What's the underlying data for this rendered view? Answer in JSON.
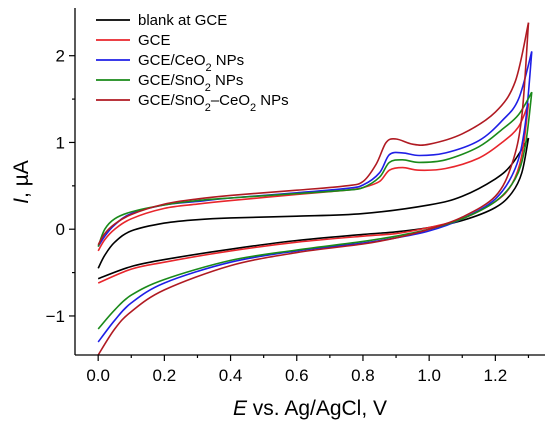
{
  "chart_data": {
    "type": "line",
    "xlabel": "E vs. Ag/AgCl, V",
    "xlabel_italic": "E",
    "xlabel_rest": " vs. Ag/AgCl, V",
    "ylabel": "I, µA",
    "ylabel_italic": "I",
    "ylabel_rest": ", µA",
    "xlim": [
      -0.07,
      1.35
    ],
    "ylim": [
      -1.45,
      2.55
    ],
    "xticks": [
      0.0,
      0.2,
      0.4,
      0.6,
      0.8,
      1.0,
      1.2
    ],
    "xtick_labels": [
      "0.0",
      "0.2",
      "0.4",
      "0.6",
      "0.8",
      "1.0",
      "1.2"
    ],
    "yticks": [
      -1,
      0,
      1,
      2
    ],
    "ytick_labels": [
      "−1",
      "0",
      "1",
      "2"
    ],
    "legend_position": "top-left",
    "series": [
      {
        "name": "blank at GCE",
        "label_main": "blank at GCE",
        "color": "#000000",
        "anodic": [
          [
            0.0,
            -0.45
          ],
          [
            0.02,
            -0.3
          ],
          [
            0.05,
            -0.15
          ],
          [
            0.1,
            -0.02
          ],
          [
            0.2,
            0.07
          ],
          [
            0.3,
            0.11
          ],
          [
            0.4,
            0.13
          ],
          [
            0.6,
            0.15
          ],
          [
            0.8,
            0.18
          ],
          [
            1.0,
            0.28
          ],
          [
            1.1,
            0.38
          ],
          [
            1.2,
            0.58
          ],
          [
            1.25,
            0.75
          ],
          [
            1.3,
            1.05
          ]
        ],
        "cathodic": [
          [
            1.3,
            1.05
          ],
          [
            1.28,
            0.65
          ],
          [
            1.25,
            0.42
          ],
          [
            1.2,
            0.25
          ],
          [
            1.1,
            0.1
          ],
          [
            1.0,
            0.02
          ],
          [
            0.9,
            -0.03
          ],
          [
            0.8,
            -0.06
          ],
          [
            0.6,
            -0.13
          ],
          [
            0.4,
            -0.23
          ],
          [
            0.2,
            -0.35
          ],
          [
            0.1,
            -0.43
          ],
          [
            0.0,
            -0.57
          ]
        ]
      },
      {
        "name": "GCE",
        "label_main": "GCE",
        "color": "#e8262c",
        "anodic": [
          [
            0.0,
            -0.25
          ],
          [
            0.02,
            -0.12
          ],
          [
            0.05,
            0.0
          ],
          [
            0.1,
            0.12
          ],
          [
            0.2,
            0.24
          ],
          [
            0.3,
            0.29
          ],
          [
            0.4,
            0.33
          ],
          [
            0.6,
            0.4
          ],
          [
            0.75,
            0.45
          ],
          [
            0.8,
            0.48
          ],
          [
            0.85,
            0.55
          ],
          [
            0.88,
            0.68
          ],
          [
            0.92,
            0.71
          ],
          [
            0.97,
            0.68
          ],
          [
            1.05,
            0.7
          ],
          [
            1.15,
            0.82
          ],
          [
            1.22,
            1.0
          ],
          [
            1.27,
            1.18
          ],
          [
            1.3,
            1.45
          ]
        ],
        "cathodic": [
          [
            1.3,
            1.45
          ],
          [
            1.28,
            0.85
          ],
          [
            1.25,
            0.52
          ],
          [
            1.2,
            0.32
          ],
          [
            1.1,
            0.12
          ],
          [
            1.0,
            0.02
          ],
          [
            0.9,
            -0.05
          ],
          [
            0.8,
            -0.08
          ],
          [
            0.6,
            -0.15
          ],
          [
            0.4,
            -0.25
          ],
          [
            0.2,
            -0.38
          ],
          [
            0.1,
            -0.46
          ],
          [
            0.0,
            -0.62
          ]
        ]
      },
      {
        "name": "GCE/CeO2 NPs",
        "label_main": "GCE/CeO",
        "label_sub": "2",
        "label_tail": " NPs",
        "color": "#1f1fe6",
        "anodic": [
          [
            0.0,
            -0.2
          ],
          [
            0.02,
            -0.08
          ],
          [
            0.05,
            0.05
          ],
          [
            0.1,
            0.18
          ],
          [
            0.2,
            0.28
          ],
          [
            0.3,
            0.32
          ],
          [
            0.4,
            0.36
          ],
          [
            0.6,
            0.42
          ],
          [
            0.75,
            0.47
          ],
          [
            0.8,
            0.51
          ],
          [
            0.85,
            0.65
          ],
          [
            0.88,
            0.86
          ],
          [
            0.92,
            0.88
          ],
          [
            0.97,
            0.85
          ],
          [
            1.05,
            0.88
          ],
          [
            1.15,
            1.02
          ],
          [
            1.22,
            1.25
          ],
          [
            1.27,
            1.5
          ],
          [
            1.31,
            2.05
          ]
        ],
        "cathodic": [
          [
            1.31,
            2.05
          ],
          [
            1.29,
            1.2
          ],
          [
            1.26,
            0.7
          ],
          [
            1.2,
            0.35
          ],
          [
            1.1,
            0.12
          ],
          [
            1.0,
            -0.02
          ],
          [
            0.9,
            -0.1
          ],
          [
            0.8,
            -0.16
          ],
          [
            0.6,
            -0.25
          ],
          [
            0.4,
            -0.38
          ],
          [
            0.2,
            -0.62
          ],
          [
            0.1,
            -0.85
          ],
          [
            0.05,
            -1.05
          ],
          [
            0.0,
            -1.3
          ]
        ]
      },
      {
        "name": "GCE/SnO2 NPs",
        "label_main": "GCE/SnO",
        "label_sub": "2",
        "label_tail": " NPs",
        "color": "#1a8a1a",
        "anodic": [
          [
            0.0,
            -0.2
          ],
          [
            0.02,
            0.0
          ],
          [
            0.05,
            0.12
          ],
          [
            0.1,
            0.2
          ],
          [
            0.2,
            0.28
          ],
          [
            0.3,
            0.33
          ],
          [
            0.4,
            0.36
          ],
          [
            0.6,
            0.41
          ],
          [
            0.75,
            0.45
          ],
          [
            0.8,
            0.48
          ],
          [
            0.85,
            0.6
          ],
          [
            0.88,
            0.77
          ],
          [
            0.92,
            0.8
          ],
          [
            0.97,
            0.77
          ],
          [
            1.05,
            0.8
          ],
          [
            1.15,
            0.95
          ],
          [
            1.22,
            1.15
          ],
          [
            1.27,
            1.32
          ],
          [
            1.31,
            1.58
          ]
        ],
        "cathodic": [
          [
            1.31,
            1.58
          ],
          [
            1.29,
            0.95
          ],
          [
            1.26,
            0.58
          ],
          [
            1.2,
            0.32
          ],
          [
            1.1,
            0.12
          ],
          [
            1.0,
            0.0
          ],
          [
            0.9,
            -0.08
          ],
          [
            0.8,
            -0.14
          ],
          [
            0.6,
            -0.24
          ],
          [
            0.4,
            -0.36
          ],
          [
            0.2,
            -0.58
          ],
          [
            0.1,
            -0.76
          ],
          [
            0.05,
            -0.93
          ],
          [
            0.0,
            -1.15
          ]
        ]
      },
      {
        "name": "GCE/SnO2–CeO2 NPs",
        "label_main": "GCE/SnO",
        "label_sub": "2",
        "label_mid": "–CeO",
        "label_sub2": "2",
        "label_tail": " NPs",
        "color": "#b01a22",
        "anodic": [
          [
            0.0,
            -0.18
          ],
          [
            0.02,
            -0.05
          ],
          [
            0.05,
            0.06
          ],
          [
            0.1,
            0.17
          ],
          [
            0.2,
            0.29
          ],
          [
            0.3,
            0.35
          ],
          [
            0.4,
            0.39
          ],
          [
            0.6,
            0.45
          ],
          [
            0.75,
            0.5
          ],
          [
            0.8,
            0.55
          ],
          [
            0.84,
            0.75
          ],
          [
            0.87,
            1.0
          ],
          [
            0.9,
            1.04
          ],
          [
            0.95,
            0.98
          ],
          [
            1.0,
            0.98
          ],
          [
            1.1,
            1.1
          ],
          [
            1.2,
            1.35
          ],
          [
            1.26,
            1.7
          ],
          [
            1.3,
            2.38
          ]
        ],
        "cathodic": [
          [
            1.3,
            2.38
          ],
          [
            1.28,
            1.3
          ],
          [
            1.25,
            0.75
          ],
          [
            1.2,
            0.38
          ],
          [
            1.1,
            0.14
          ],
          [
            1.0,
            0.0
          ],
          [
            0.9,
            -0.1
          ],
          [
            0.8,
            -0.17
          ],
          [
            0.6,
            -0.27
          ],
          [
            0.4,
            -0.42
          ],
          [
            0.2,
            -0.7
          ],
          [
            0.1,
            -0.95
          ],
          [
            0.05,
            -1.15
          ],
          [
            0.0,
            -1.45
          ]
        ]
      }
    ]
  }
}
